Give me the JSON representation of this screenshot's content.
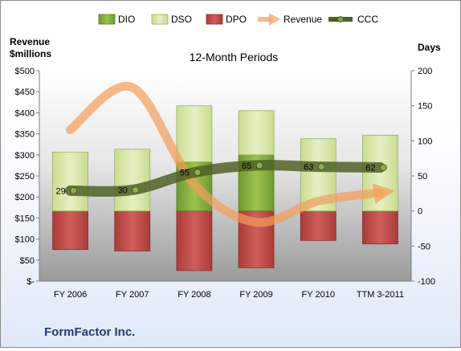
{
  "chart_data": {
    "type": "bar",
    "title": "12-Month Periods",
    "company": "FormFactor Inc.",
    "categories": [
      "FY 2006",
      "FY 2007",
      "FY 2008",
      "FY 2009",
      "FY 2010",
      "TTM 3-2011"
    ],
    "left_axis": {
      "label_line1": "Revenue",
      "label_line2": "$millions",
      "ylim": [
        0,
        500
      ],
      "ticks": [
        0,
        50,
        100,
        150,
        200,
        250,
        300,
        350,
        400,
        450,
        500
      ],
      "tick_labels": [
        "$-",
        "$50",
        "$100",
        "$150",
        "$200",
        "$250",
        "$300",
        "$350",
        "$400",
        "$450",
        "$500"
      ]
    },
    "right_axis": {
      "label": "Days",
      "ylim": [
        -100,
        200
      ],
      "ticks": [
        -100,
        -50,
        0,
        50,
        100,
        150,
        200
      ],
      "tick_labels": [
        "-100",
        "-50",
        "0",
        "50",
        "100",
        "150",
        "200"
      ]
    },
    "legend": [
      "DIO",
      "DSO",
      "DPO",
      "Revenue",
      "CCC"
    ],
    "legend_position": "top",
    "grid": false,
    "series": [
      {
        "name": "DIO",
        "axis": "right",
        "values": [
          0,
          0,
          70,
          80,
          0,
          0
        ],
        "color": "#7fa63a"
      },
      {
        "name": "DSO",
        "axis": "right",
        "values": [
          84,
          88,
          80,
          63,
          103,
          108
        ],
        "color": "#d7e6a4"
      },
      {
        "name": "DPO",
        "axis": "right",
        "values": [
          -55,
          -57,
          -85,
          -81,
          -42,
          -47
        ],
        "color": "#c0504d"
      },
      {
        "name": "Revenue",
        "axis": "left",
        "values": [
          360,
          460,
          230,
          140,
          190,
          210
        ],
        "color": "#f39c5a"
      },
      {
        "name": "CCC",
        "axis": "right",
        "values": [
          29,
          30,
          55,
          65,
          63,
          62
        ],
        "color": "#4f6228"
      }
    ],
    "ccc_labels": [
      "29",
      "30",
      "55",
      "65",
      "63",
      "62"
    ]
  }
}
